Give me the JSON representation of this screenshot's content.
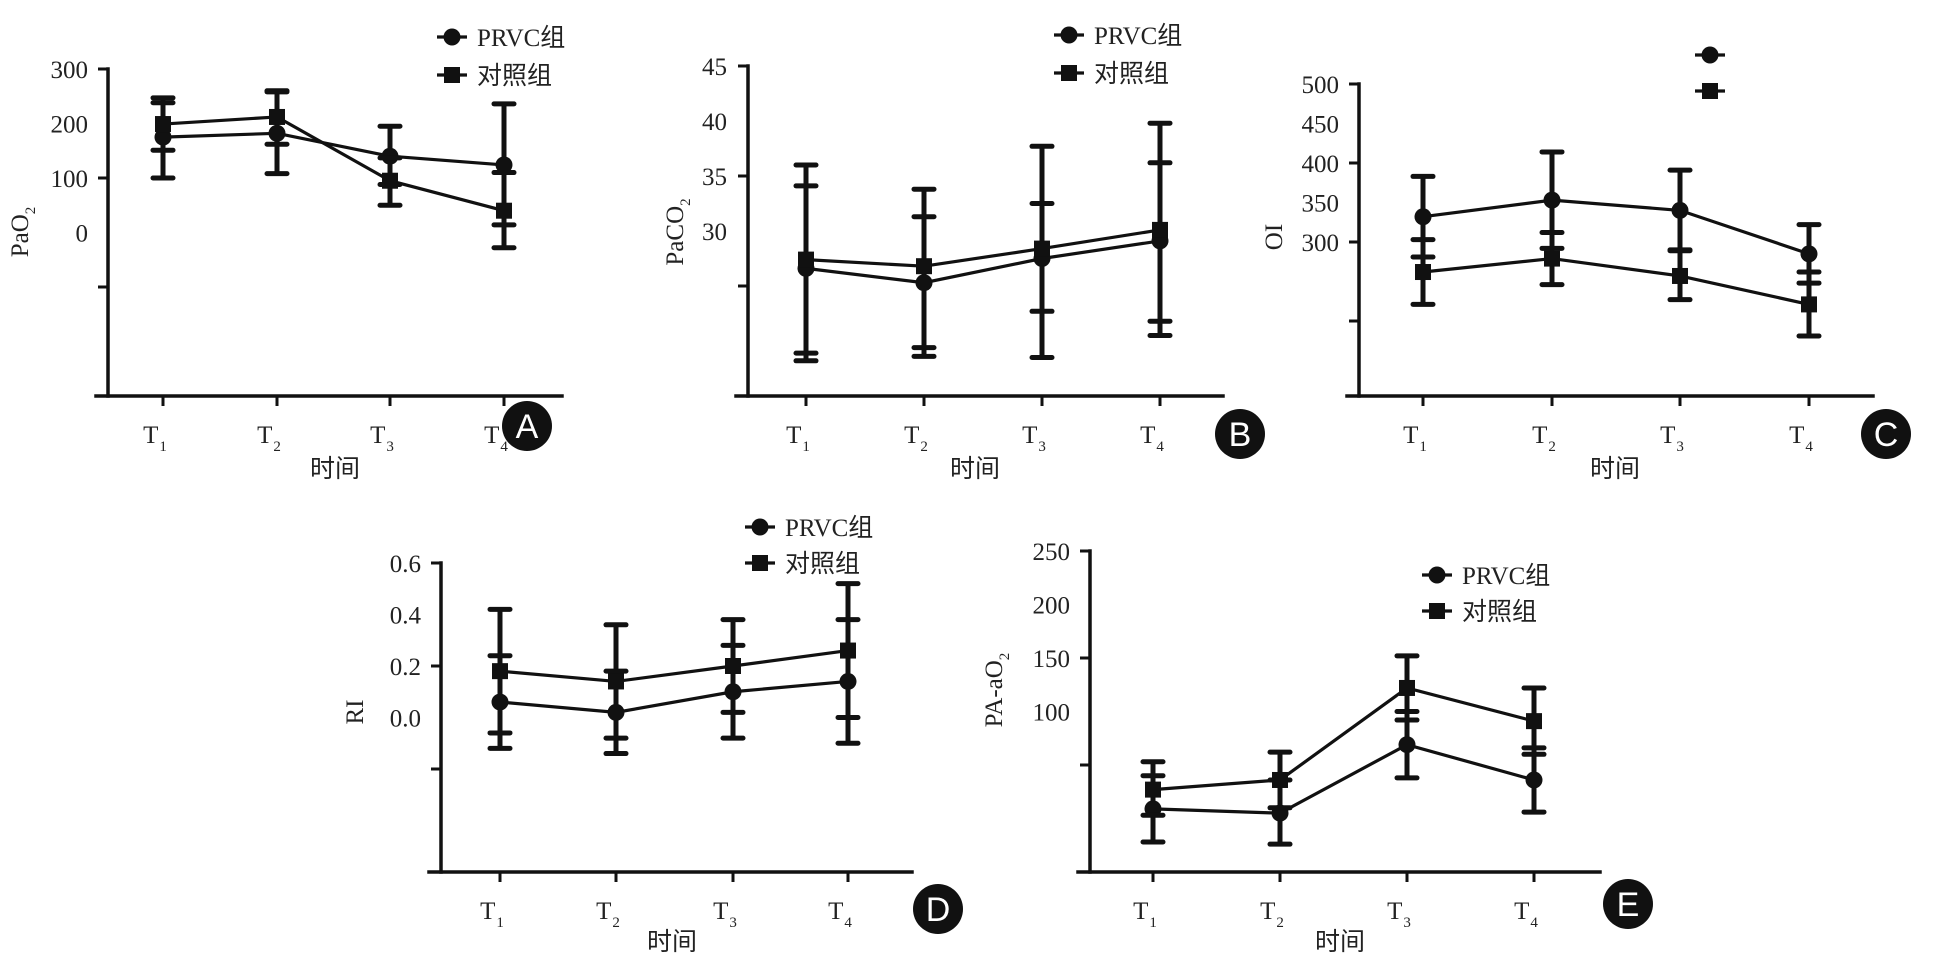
{
  "figure": {
    "x_axis_title": "时间",
    "x_ticks": [
      {
        "main": "T",
        "sub": "1"
      },
      {
        "main": "T",
        "sub": "2"
      },
      {
        "main": "T",
        "sub": "3"
      },
      {
        "main": "T",
        "sub": "4"
      }
    ],
    "legend_labels": [
      "PRVC组",
      "对照组"
    ],
    "series_markers": [
      "circle",
      "square"
    ],
    "colors": {
      "ink": "#111111",
      "badge": "#111111",
      "badge_text": "#ffffff",
      "background": "#ffffff"
    }
  },
  "chart_data": [
    {
      "panel": "A",
      "type": "line",
      "ylabel": "PaO",
      "ylabel_sub": "2",
      "xlabel": "时间",
      "categories": [
        "T1",
        "T2",
        "T3",
        "T4"
      ],
      "ytick_labels": [
        {
          "text": "300",
          "value": 300
        },
        {
          "text": "200",
          "value": 200
        },
        {
          "text": "100",
          "value": 100
        },
        {
          "text": "0",
          "value": 0
        }
      ],
      "ytick_marks": [
        300,
        100,
        -100
      ],
      "ylim": [
        -300,
        300
      ],
      "legend": {
        "placement": "top-right",
        "show_labels": true
      },
      "series": [
        {
          "name": "PRVC组",
          "marker": "circle",
          "values": [
            175,
            182,
            140,
            124
          ],
          "err_upper": [
            238,
            258,
            195,
            236
          ],
          "err_lower": [
            100,
            108,
            50,
            14
          ]
        },
        {
          "name": "对照组",
          "marker": "square",
          "values": [
            199,
            212,
            95,
            40
          ],
          "err_upper": [
            247,
            260,
            137,
            110
          ],
          "err_lower": [
            151,
            162,
            88,
            -28
          ]
        }
      ]
    },
    {
      "panel": "B",
      "type": "line",
      "ylabel": "PaCO",
      "ylabel_sub": "2",
      "xlabel": "时间",
      "categories": [
        "T1",
        "T2",
        "T3",
        "T4"
      ],
      "ytick_labels": [
        {
          "text": "45",
          "value": 45
        },
        {
          "text": "40",
          "value": 40
        },
        {
          "text": "35",
          "value": 35
        },
        {
          "text": "30",
          "value": 30
        }
      ],
      "ytick_marks": [
        45,
        35,
        25
      ],
      "ylim": [
        15,
        45
      ],
      "legend": {
        "placement": "top-right",
        "show_labels": true
      },
      "series": [
        {
          "name": "PRVC组",
          "marker": "circle",
          "values": [
            26.6,
            25.3,
            27.5,
            29.1
          ],
          "err_upper": [
            34.1,
            31.3,
            32.5,
            36.2
          ],
          "err_lower": [
            18.9,
            19.4,
            22.7,
            21.8
          ]
        },
        {
          "name": "对照组",
          "marker": "square",
          "values": [
            27.4,
            26.8,
            28.4,
            30.1
          ],
          "err_upper": [
            36.0,
            33.8,
            37.7,
            39.8
          ],
          "err_lower": [
            18.2,
            18.6,
            18.5,
            20.5
          ]
        }
      ]
    },
    {
      "panel": "C",
      "type": "line",
      "ylabel": "OI",
      "ylabel_sub": "",
      "xlabel": "时间",
      "categories": [
        "T1",
        "T2",
        "T3",
        "T4"
      ],
      "ytick_labels": [
        {
          "text": "500",
          "value": 500
        },
        {
          "text": "450",
          "value": 450
        },
        {
          "text": "400",
          "value": 400
        },
        {
          "text": "350",
          "value": 350
        },
        {
          "text": "300",
          "value": 300
        }
      ],
      "ytick_marks": [
        500,
        400,
        300,
        200
      ],
      "ylim": [
        100,
        500
      ],
      "legend": {
        "placement": "top-right",
        "show_labels": false
      },
      "series": [
        {
          "name": "PRVC组",
          "marker": "circle",
          "values": [
            332,
            353,
            340,
            285
          ],
          "err_upper": [
            383,
            414,
            391,
            322
          ],
          "err_lower": [
            281,
            292,
            289,
            248
          ]
        },
        {
          "name": "对照组",
          "marker": "square",
          "values": [
            262,
            279,
            257,
            221
          ],
          "err_upper": [
            303,
            312,
            290,
            262
          ],
          "err_lower": [
            221,
            246,
            227,
            181
          ]
        }
      ]
    },
    {
      "panel": "D",
      "type": "line",
      "ylabel": "RI",
      "ylabel_sub": "",
      "xlabel": "时间",
      "categories": [
        "T1",
        "T2",
        "T3",
        "T4"
      ],
      "ytick_labels": [
        {
          "text": "0.6",
          "value": 0.6
        },
        {
          "text": "0.4",
          "value": 0.4
        },
        {
          "text": "0.2",
          "value": 0.2
        },
        {
          "text": "0.0",
          "value": 0.0
        }
      ],
      "ytick_marks": [
        0.6,
        0.2,
        -0.2
      ],
      "ylim": [
        -0.6,
        0.6
      ],
      "legend": {
        "placement": "top-right",
        "show_labels": true
      },
      "series": [
        {
          "name": "PRVC组",
          "marker": "circle",
          "values": [
            0.06,
            0.02,
            0.1,
            0.14
          ],
          "err_upper": [
            0.24,
            0.18,
            0.28,
            0.38
          ],
          "err_lower": [
            -0.12,
            -0.14,
            -0.08,
            -0.1
          ]
        },
        {
          "name": "对照组",
          "marker": "square",
          "values": [
            0.18,
            0.14,
            0.2,
            0.26
          ],
          "err_upper": [
            0.42,
            0.36,
            0.38,
            0.52
          ],
          "err_lower": [
            -0.06,
            -0.08,
            0.02,
            0.0
          ]
        }
      ]
    },
    {
      "panel": "E",
      "type": "line",
      "ylabel": "PA-aO",
      "ylabel_sub": "2",
      "xlabel": "时间",
      "categories": [
        "T1",
        "T2",
        "T3",
        "T4"
      ],
      "ytick_labels": [
        {
          "text": "250",
          "value": 250
        },
        {
          "text": "200",
          "value": 200
        },
        {
          "text": "150",
          "value": 150
        },
        {
          "text": "100",
          "value": 100
        }
      ],
      "ytick_marks": [
        250,
        150,
        50
      ],
      "ylim": [
        -50,
        250
      ],
      "legend": {
        "placement": "top-right",
        "show_labels": true
      },
      "series": [
        {
          "name": "PRVC组",
          "marker": "circle",
          "values": [
            9,
            5,
            69,
            36
          ],
          "err_upper": [
            40,
            36,
            100,
            66
          ],
          "err_lower": [
            -22,
            -24,
            38,
            6
          ]
        },
        {
          "name": "对照组",
          "marker": "square",
          "values": [
            27,
            36,
            122,
            91
          ],
          "err_upper": [
            53,
            62,
            152,
            122
          ],
          "err_lower": [
            3,
            10,
            92,
            60
          ]
        }
      ]
    }
  ]
}
